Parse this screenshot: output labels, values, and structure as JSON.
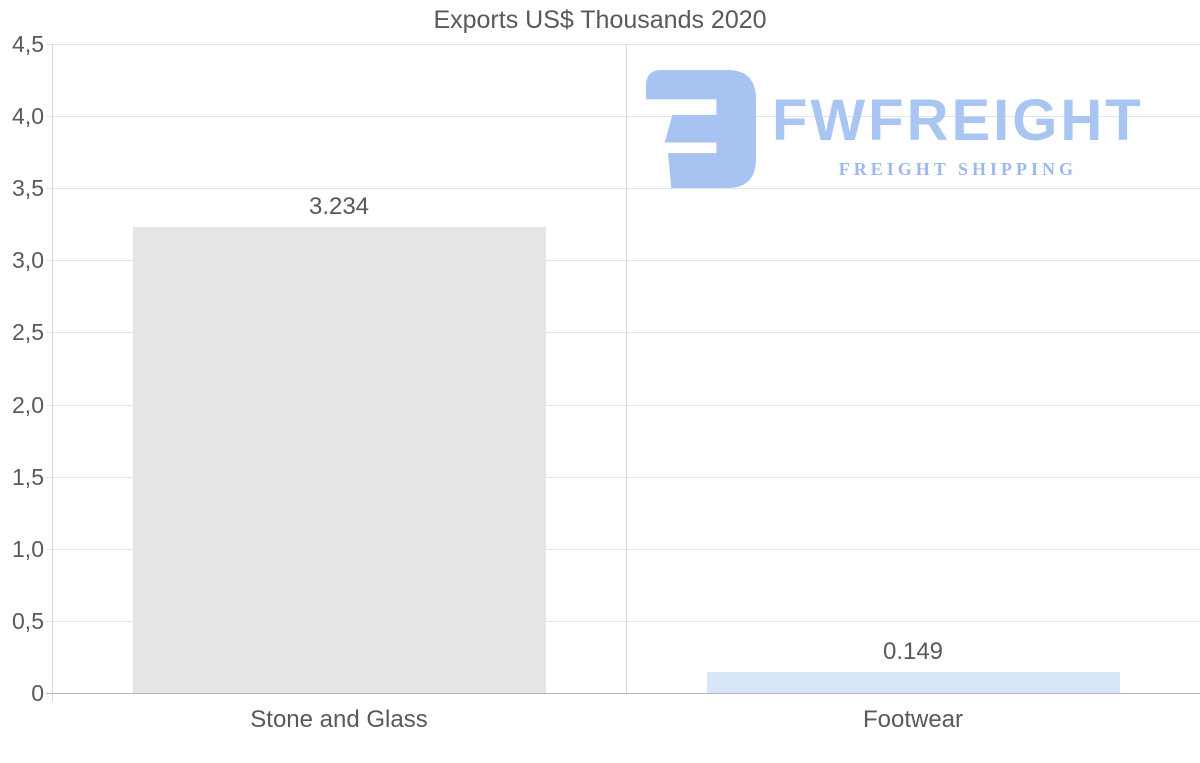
{
  "chart_data": {
    "type": "bar",
    "title": "Exports US$ Thousands 2020",
    "categories": [
      "Stone and Glass",
      "Footwear"
    ],
    "values": [
      3.234,
      0.149
    ],
    "value_labels": [
      "3.234",
      "0.149"
    ],
    "bar_colors": [
      "#e5e5e5",
      "#d7e6f9"
    ],
    "ylim": [
      0,
      4.5
    ],
    "ytick_step": 0.5,
    "ytick_labels": [
      "0",
      "0,5",
      "1,0",
      "1,5",
      "2,0",
      "2,5",
      "3,0",
      "3,5",
      "4,0",
      "4,5"
    ],
    "grid": true,
    "legend": "none",
    "xlabel": "",
    "ylabel": ""
  },
  "watermark": {
    "brand": "FWFREIGHT",
    "tagline": "FREIGHT SHIPPING",
    "logo_icon": "fw-monogram-icon",
    "color_primary": "#a6c3f1",
    "color_brand_text": "#a9c6f3",
    "color_tagline": "#9db9ec"
  },
  "colors": {
    "title_text": "#58595b",
    "axis_text": "#595959",
    "gridline": "#e4e4e4",
    "zero_line": "#b5b5b5",
    "axis_line": "#d6d6d6",
    "background": "#ffffff"
  }
}
